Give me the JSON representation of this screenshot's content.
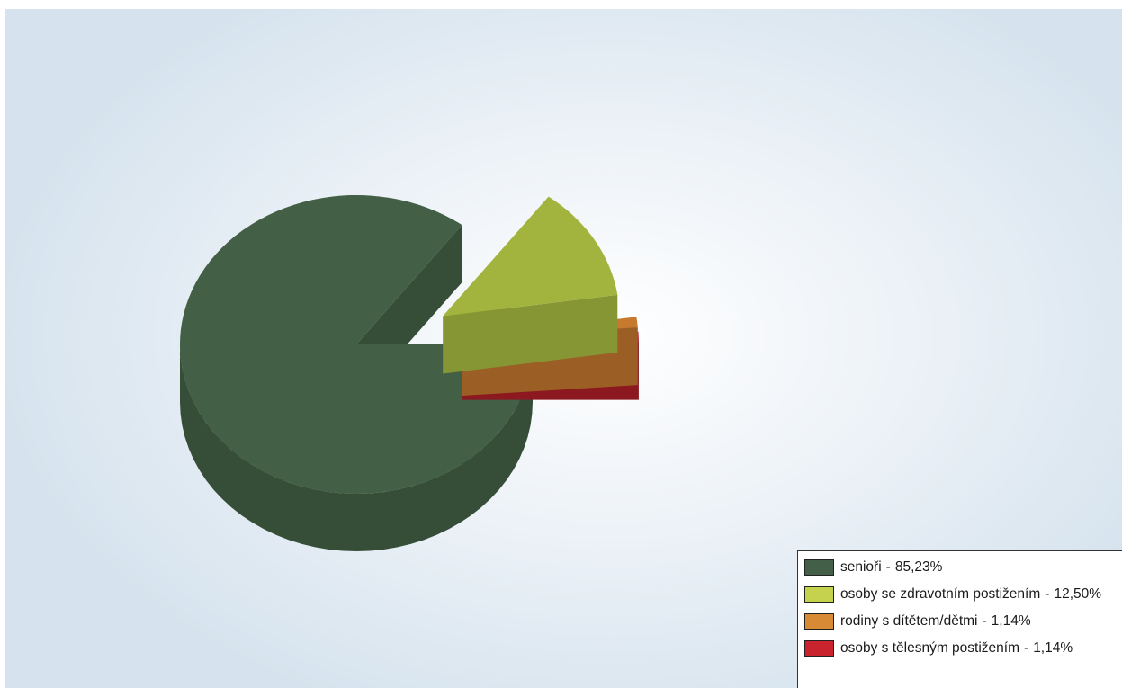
{
  "chart_data": {
    "type": "pie",
    "three_d": true,
    "slices": [
      {
        "label": "senioři",
        "value": 85.23,
        "value_text": "85,23%",
        "color": "#435f45",
        "side_color": "#364e38",
        "exploded": false
      },
      {
        "label": "osoby se zdravotním postižením",
        "value": 12.5,
        "value_text": "12,50%",
        "color": "#a3b43e",
        "side_color": "#879635",
        "exploded": true
      },
      {
        "label": "rodiny s dítětem/dětmi",
        "value": 1.14,
        "value_text": "1,14%",
        "color": "#c77a2e",
        "side_color": "#9b5e24",
        "exploded": true
      },
      {
        "label": "osoby s tělesným postižením",
        "value": 1.14,
        "value_text": "1,14%",
        "color": "#b51f2a",
        "side_color": "#8c1820",
        "exploded": true
      }
    ],
    "legend": {
      "placement": "bottom-right",
      "items": [
        {
          "label": "senioři",
          "value_text": "85,23%",
          "color": "#445f47"
        },
        {
          "label": "osoby se zdravotním postižením",
          "value_text": "12,50%",
          "color": "#c5d24d"
        },
        {
          "label": "rodiny s dítětem/dětmi",
          "value_text": "1,14%",
          "color": "#d98a34"
        },
        {
          "label": "osoby s tělesným postižením",
          "value_text": "1,14%",
          "color": "#c9232d"
        }
      ]
    }
  }
}
